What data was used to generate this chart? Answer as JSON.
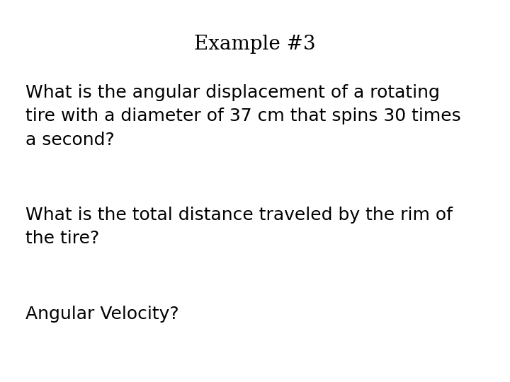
{
  "title": "Example #3",
  "background_color": "#ffffff",
  "text_color": "#000000",
  "q1_text": "What is the angular displacement of a rotating\ntire with a diameter of 37 cm that spins 30 times\na second?",
  "q2_text": "What is the total distance traveled by the rim of\nthe tire?",
  "q3_text": "Angular Velocity?",
  "title_fontsize": 20,
  "body_fontsize": 18,
  "title_font": "serif",
  "body_font": "sans-serif"
}
